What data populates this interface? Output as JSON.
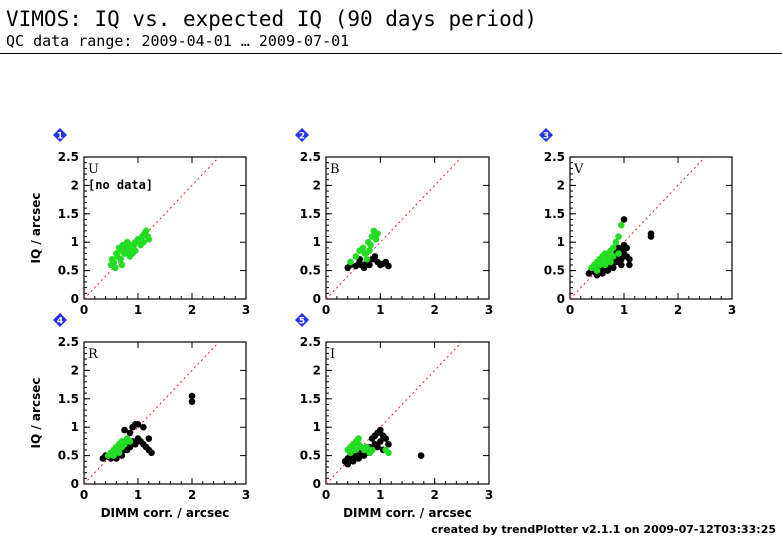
{
  "header": {
    "title": "VIMOS: IQ vs. expected IQ (90 days period)",
    "subtitle": "QC data range: 2009-04-01 … 2009-07-01"
  },
  "footer": {
    "credit": "created by trendPlotter v2.1.1 on 2009-07-12T03:33:25"
  },
  "colors": {
    "detected": "#000000",
    "expected": "#22dd22",
    "reference_line": "#dd2222",
    "badge": "#2233ee"
  },
  "chart_data": [
    {
      "type": "scatter",
      "panel": "1",
      "band": "U",
      "note": "[no data]",
      "xlabel": "",
      "ylabel": "IQ / arcsec",
      "xlim": [
        0,
        3
      ],
      "ylim": [
        0,
        2.5
      ],
      "xticks": [
        "0",
        "1",
        "2",
        "3"
      ],
      "yticks": [
        "0",
        "0.5",
        "1",
        "1.5",
        "2",
        "2.5"
      ],
      "reference_line": [
        [
          0,
          0
        ],
        [
          3,
          3
        ]
      ],
      "series": [
        {
          "color": "#22dd22",
          "points": [
            [
              0.5,
              0.6
            ],
            [
              0.52,
              0.7
            ],
            [
              0.55,
              0.65
            ],
            [
              0.6,
              0.8
            ],
            [
              0.62,
              0.75
            ],
            [
              0.65,
              0.9
            ],
            [
              0.68,
              0.7
            ],
            [
              0.7,
              0.85
            ],
            [
              0.72,
              0.95
            ],
            [
              0.75,
              0.8
            ],
            [
              0.78,
              0.9
            ],
            [
              0.8,
              1.0
            ],
            [
              0.82,
              0.85
            ],
            [
              0.85,
              0.95
            ],
            [
              0.88,
              0.9
            ],
            [
              0.9,
              0.8
            ],
            [
              0.92,
              0.95
            ],
            [
              0.95,
              0.85
            ],
            [
              1.0,
              1.05
            ],
            [
              1.05,
              0.95
            ],
            [
              1.08,
              1.1
            ],
            [
              1.1,
              1.0
            ],
            [
              1.12,
              1.15
            ],
            [
              1.15,
              1.2
            ],
            [
              1.18,
              1.1
            ],
            [
              0.58,
              0.55
            ],
            [
              0.7,
              0.6
            ],
            [
              0.85,
              0.75
            ],
            [
              0.95,
              1.0
            ],
            [
              1.2,
              1.05
            ]
          ]
        }
      ]
    },
    {
      "type": "scatter",
      "panel": "2",
      "band": "B",
      "note": "",
      "xlabel": "",
      "ylabel": "",
      "xlim": [
        0,
        3
      ],
      "ylim": [
        0,
        2.5
      ],
      "xticks": [
        "0",
        "1",
        "2",
        "3"
      ],
      "yticks": [
        "0",
        "0.5",
        "1",
        "1.5",
        "2",
        "2.5"
      ],
      "reference_line": [
        [
          0,
          0
        ],
        [
          3,
          3
        ]
      ],
      "series": [
        {
          "color": "#000000",
          "points": [
            [
              0.4,
              0.55
            ],
            [
              0.45,
              0.6
            ],
            [
              0.55,
              0.58
            ],
            [
              0.6,
              0.62
            ],
            [
              0.65,
              0.6
            ],
            [
              0.7,
              0.55
            ],
            [
              0.75,
              0.65
            ],
            [
              0.8,
              0.6
            ],
            [
              0.85,
              0.7
            ],
            [
              0.9,
              0.75
            ],
            [
              0.95,
              0.65
            ],
            [
              1.0,
              0.6
            ],
            [
              1.05,
              0.62
            ],
            [
              1.1,
              0.65
            ],
            [
              1.15,
              0.58
            ],
            [
              0.62,
              0.7
            ]
          ]
        },
        {
          "color": "#22dd22",
          "points": [
            [
              0.45,
              0.65
            ],
            [
              0.55,
              0.75
            ],
            [
              0.62,
              0.85
            ],
            [
              0.68,
              0.9
            ],
            [
              0.72,
              0.8
            ],
            [
              0.78,
              1.0
            ],
            [
              0.82,
              0.95
            ],
            [
              0.85,
              1.1
            ],
            [
              0.88,
              1.2
            ],
            [
              0.92,
              1.05
            ],
            [
              0.95,
              1.15
            ],
            [
              0.75,
              0.7
            ],
            [
              0.8,
              0.85
            ]
          ]
        }
      ]
    },
    {
      "type": "scatter",
      "panel": "3",
      "band": "V",
      "note": "",
      "xlabel": "",
      "ylabel": "",
      "xlim": [
        0,
        3
      ],
      "ylim": [
        0,
        2.5
      ],
      "xticks": [
        "0",
        "1",
        "2",
        "3"
      ],
      "yticks": [
        "0",
        "0.5",
        "1",
        "1.5",
        "2",
        "2.5"
      ],
      "reference_line": [
        [
          0,
          0
        ],
        [
          3,
          3
        ]
      ],
      "series": [
        {
          "color": "#000000",
          "points": [
            [
              0.35,
              0.45
            ],
            [
              0.4,
              0.5
            ],
            [
              0.45,
              0.48
            ],
            [
              0.5,
              0.55
            ],
            [
              0.55,
              0.5
            ],
            [
              0.6,
              0.6
            ],
            [
              0.65,
              0.55
            ],
            [
              0.7,
              0.65
            ],
            [
              0.75,
              0.6
            ],
            [
              0.8,
              0.7
            ],
            [
              0.85,
              0.65
            ],
            [
              0.9,
              0.75
            ],
            [
              0.95,
              0.7
            ],
            [
              1.0,
              0.8
            ],
            [
              1.05,
              0.75
            ],
            [
              1.1,
              0.7
            ],
            [
              1.0,
              1.4
            ],
            [
              1.0,
              0.95
            ],
            [
              1.05,
              0.9
            ],
            [
              0.95,
              0.85
            ],
            [
              0.9,
              0.9
            ],
            [
              0.85,
              0.85
            ],
            [
              1.5,
              1.1
            ],
            [
              1.5,
              1.15
            ],
            [
              0.6,
              0.45
            ],
            [
              0.7,
              0.5
            ],
            [
              0.8,
              0.55
            ],
            [
              0.5,
              0.42
            ],
            [
              1.1,
              0.6
            ],
            [
              0.95,
              0.6
            ]
          ]
        },
        {
          "color": "#22dd22",
          "points": [
            [
              0.4,
              0.55
            ],
            [
              0.45,
              0.6
            ],
            [
              0.5,
              0.65
            ],
            [
              0.55,
              0.7
            ],
            [
              0.6,
              0.75
            ],
            [
              0.65,
              0.8
            ],
            [
              0.7,
              0.75
            ],
            [
              0.75,
              0.85
            ],
            [
              0.8,
              0.9
            ],
            [
              0.85,
              1.0
            ],
            [
              0.9,
              1.1
            ],
            [
              0.95,
              1.3
            ],
            [
              0.55,
              0.6
            ],
            [
              0.6,
              0.65
            ],
            [
              0.7,
              0.7
            ],
            [
              0.8,
              0.75
            ],
            [
              0.9,
              0.8
            ],
            [
              0.5,
              0.5
            ],
            [
              0.65,
              0.6
            ],
            [
              0.75,
              0.65
            ]
          ]
        }
      ]
    },
    {
      "type": "scatter",
      "panel": "4",
      "band": "R",
      "note": "",
      "xlabel": "DIMM corr. / arcsec",
      "ylabel": "IQ / arcsec",
      "xlim": [
        0,
        3
      ],
      "ylim": [
        0,
        2.5
      ],
      "xticks": [
        "0",
        "1",
        "2",
        "3"
      ],
      "yticks": [
        "0",
        "0.5",
        "1",
        "1.5",
        "2",
        "2.5"
      ],
      "reference_line": [
        [
          0,
          0
        ],
        [
          3,
          3
        ]
      ],
      "series": [
        {
          "color": "#000000",
          "points": [
            [
              0.35,
              0.45
            ],
            [
              0.4,
              0.5
            ],
            [
              0.45,
              0.48
            ],
            [
              0.5,
              0.55
            ],
            [
              0.55,
              0.5
            ],
            [
              0.6,
              0.6
            ],
            [
              0.65,
              0.55
            ],
            [
              0.7,
              0.65
            ],
            [
              0.75,
              0.6
            ],
            [
              0.8,
              0.7
            ],
            [
              0.85,
              0.65
            ],
            [
              0.9,
              0.75
            ],
            [
              0.95,
              0.7
            ],
            [
              1.0,
              0.8
            ],
            [
              1.05,
              0.75
            ],
            [
              1.1,
              0.7
            ],
            [
              1.15,
              0.65
            ],
            [
              1.2,
              0.6
            ],
            [
              1.25,
              0.55
            ],
            [
              0.9,
              1.0
            ],
            [
              0.95,
              1.05
            ],
            [
              0.85,
              0.9
            ],
            [
              0.75,
              0.95
            ],
            [
              1.0,
              1.05
            ],
            [
              2.0,
              1.45
            ],
            [
              2.0,
              1.55
            ],
            [
              1.1,
              1.0
            ],
            [
              0.6,
              0.45
            ],
            [
              0.7,
              0.5
            ],
            [
              1.2,
              0.8
            ],
            [
              0.8,
              0.6
            ],
            [
              0.5,
              0.45
            ]
          ]
        },
        {
          "color": "#22dd22",
          "points": [
            [
              0.45,
              0.5
            ],
            [
              0.5,
              0.55
            ],
            [
              0.55,
              0.6
            ],
            [
              0.6,
              0.65
            ],
            [
              0.65,
              0.7
            ],
            [
              0.7,
              0.75
            ],
            [
              0.75,
              0.7
            ],
            [
              0.8,
              0.8
            ],
            [
              0.85,
              0.75
            ],
            [
              0.6,
              0.6
            ],
            [
              0.7,
              0.65
            ],
            [
              0.55,
              0.5
            ],
            [
              0.65,
              0.55
            ]
          ]
        }
      ]
    },
    {
      "type": "scatter",
      "panel": "5",
      "band": "I",
      "note": "",
      "xlabel": "DIMM corr. / arcsec",
      "ylabel": "",
      "xlim": [
        0,
        3
      ],
      "ylim": [
        0,
        2.5
      ],
      "xticks": [
        "0",
        "1",
        "2",
        "3"
      ],
      "yticks": [
        "0",
        "0.5",
        "1",
        "1.5",
        "2",
        "2.5"
      ],
      "reference_line": [
        [
          0,
          0
        ],
        [
          3,
          3
        ]
      ],
      "series": [
        {
          "color": "#000000",
          "points": [
            [
              0.35,
              0.4
            ],
            [
              0.4,
              0.45
            ],
            [
              0.45,
              0.5
            ],
            [
              0.5,
              0.45
            ],
            [
              0.55,
              0.5
            ],
            [
              0.6,
              0.55
            ],
            [
              0.65,
              0.5
            ],
            [
              0.7,
              0.6
            ],
            [
              0.75,
              0.55
            ],
            [
              0.8,
              0.65
            ],
            [
              0.85,
              0.6
            ],
            [
              0.9,
              0.7
            ],
            [
              0.95,
              0.65
            ],
            [
              1.0,
              0.75
            ],
            [
              1.05,
              0.85
            ],
            [
              1.1,
              0.8
            ],
            [
              1.15,
              0.7
            ],
            [
              0.95,
              0.9
            ],
            [
              1.0,
              0.95
            ],
            [
              0.9,
              0.85
            ],
            [
              1.75,
              0.5
            ],
            [
              0.4,
              0.35
            ],
            [
              0.5,
              0.4
            ],
            [
              0.6,
              0.45
            ],
            [
              0.7,
              0.5
            ],
            [
              0.8,
              0.55
            ],
            [
              1.05,
              0.6
            ],
            [
              0.85,
              0.8
            ]
          ]
        },
        {
          "color": "#22dd22",
          "points": [
            [
              0.4,
              0.6
            ],
            [
              0.45,
              0.65
            ],
            [
              0.5,
              0.7
            ],
            [
              0.55,
              0.75
            ],
            [
              0.6,
              0.7
            ],
            [
              0.65,
              0.65
            ],
            [
              0.7,
              0.6
            ],
            [
              0.75,
              0.65
            ],
            [
              0.8,
              0.55
            ],
            [
              0.85,
              0.6
            ],
            [
              0.55,
              0.6
            ],
            [
              0.6,
              0.8
            ],
            [
              1.1,
              0.6
            ],
            [
              1.15,
              0.55
            ],
            [
              0.45,
              0.55
            ]
          ]
        }
      ]
    }
  ]
}
